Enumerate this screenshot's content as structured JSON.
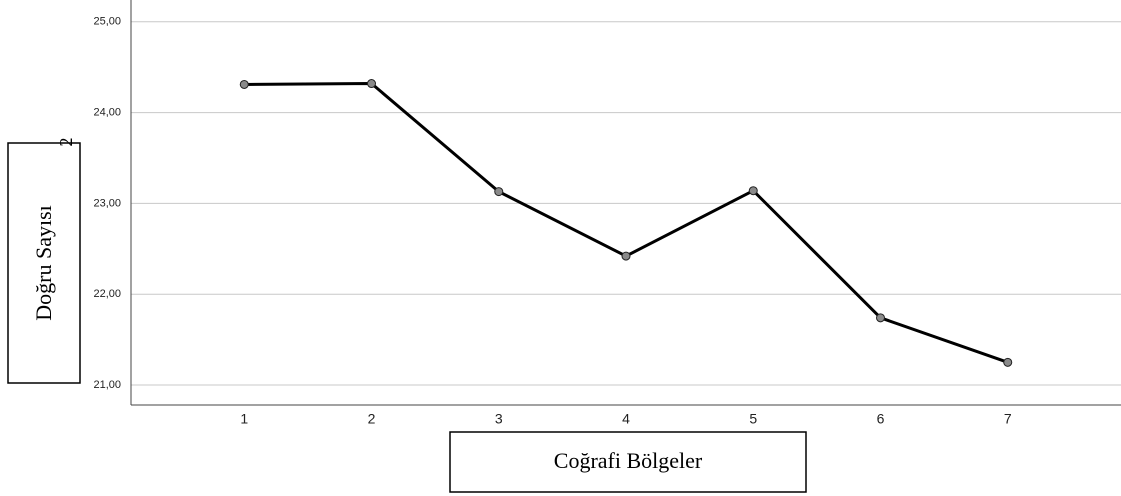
{
  "chart_data": {
    "type": "line",
    "x_label": "Coğrafi Bölgeler",
    "y_label": "Doğru Sayısı",
    "annotation": "2",
    "categories": [
      "1",
      "2",
      "3",
      "4",
      "5",
      "6",
      "7"
    ],
    "series": [
      {
        "color": "#000000",
        "values": [
          24.31,
          24.32,
          23.13,
          22.42,
          23.14,
          21.74,
          21.25
        ]
      }
    ],
    "ylim": [
      20.78,
      25.24
    ],
    "yticks": [
      {
        "value": 21,
        "label": "21,00"
      },
      {
        "value": 22,
        "label": "22,00"
      },
      {
        "value": 23,
        "label": "23,00"
      },
      {
        "value": 24,
        "label": "24,00"
      },
      {
        "value": 25,
        "label": "25,00"
      }
    ],
    "grid": true
  }
}
